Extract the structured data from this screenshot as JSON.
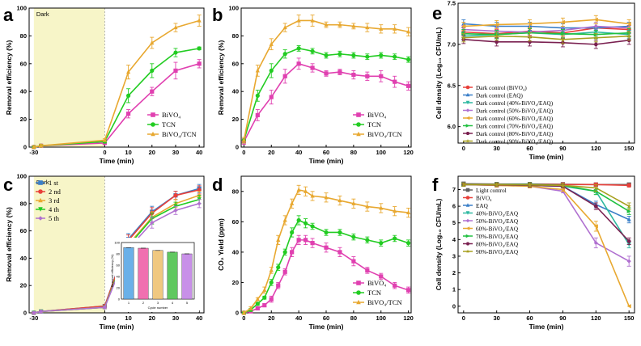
{
  "colors": {
    "pink": "#e040b0",
    "green": "#22cc22",
    "orange": "#e8a830",
    "red": "#e8403a",
    "blue": "#3a7fc8",
    "teal": "#2eb8a0",
    "purple": "#b070d0",
    "dgreen": "#20c040",
    "maroon": "#7a2050",
    "olive": "#a8a020",
    "gray": "#606060",
    "dark_fill": "#f7f5c8",
    "inset_bars": [
      "#6ab0e8",
      "#f070b0",
      "#f0c880",
      "#60c860",
      "#c890e8"
    ]
  },
  "chart_data": [
    {
      "id": "a",
      "label": "a",
      "type": "line",
      "title": "",
      "xlabel": "Time (min)",
      "ylabel": "Removal efficiency (%)",
      "xlim": [
        -32,
        42
      ],
      "ylim": [
        0,
        100
      ],
      "xticks": [
        -30,
        0,
        10,
        20,
        30,
        40
      ],
      "yticks": [
        0,
        20,
        40,
        60,
        80,
        100
      ],
      "dark_region": [
        -30,
        0
      ],
      "dark_label": "Dark",
      "legend_position": "bottom-right",
      "x": [
        -30,
        -27,
        0,
        10,
        20,
        30,
        40
      ],
      "series": [
        {
          "name": "BiVO₄",
          "color": "pink",
          "marker": "square",
          "values": [
            0,
            1,
            3,
            24,
            40,
            55,
            60
          ],
          "err": [
            1,
            1,
            1,
            3,
            3,
            6,
            3
          ]
        },
        {
          "name": "TCN",
          "color": "green",
          "marker": "circle",
          "values": [
            0,
            1,
            4,
            37,
            55,
            68,
            71
          ],
          "err": [
            1,
            1,
            1,
            5,
            5,
            3,
            1
          ]
        },
        {
          "name": "BiVO₄/TCN",
          "color": "orange",
          "marker": "triangle",
          "values": [
            0,
            1,
            5,
            54,
            75,
            86,
            91
          ],
          "err": [
            1,
            1,
            1,
            5,
            4,
            3,
            4
          ]
        }
      ]
    },
    {
      "id": "b",
      "label": "b",
      "type": "line",
      "title": "",
      "xlabel": "Time (min)",
      "ylabel": "Removal efficiency (%)",
      "xlim": [
        -2,
        122
      ],
      "ylim": [
        0,
        100
      ],
      "xticks": [
        0,
        20,
        40,
        60,
        80,
        100,
        120
      ],
      "yticks": [
        0,
        20,
        40,
        60,
        80,
        100
      ],
      "legend_position": "bottom-right",
      "x": [
        0,
        10,
        20,
        30,
        40,
        50,
        60,
        70,
        80,
        90,
        100,
        110,
        120
      ],
      "series": [
        {
          "name": "BiVO₄",
          "color": "pink",
          "marker": "square",
          "values": [
            4,
            23,
            36,
            51,
            60,
            57,
            53,
            54,
            52,
            51,
            51,
            47,
            44
          ],
          "err": [
            2,
            4,
            5,
            5,
            4,
            3,
            2,
            2,
            3,
            3,
            4,
            4,
            3
          ]
        },
        {
          "name": "TCN",
          "color": "green",
          "marker": "circle",
          "values": [
            5,
            37,
            55,
            67,
            71,
            69,
            66,
            67,
            66,
            65,
            66,
            65,
            63
          ],
          "err": [
            2,
            4,
            5,
            3,
            2,
            2,
            2,
            2,
            2,
            2,
            2,
            2,
            2
          ]
        },
        {
          "name": "BiVO₄/TCN",
          "color": "orange",
          "marker": "triangle",
          "values": [
            5,
            55,
            74,
            86,
            91,
            91,
            88,
            88,
            87,
            86,
            85,
            85,
            83
          ],
          "err": [
            2,
            4,
            4,
            3,
            4,
            4,
            2,
            2,
            2,
            3,
            3,
            3,
            3
          ]
        }
      ]
    },
    {
      "id": "c",
      "label": "c",
      "type": "line",
      "title": "",
      "xlabel": "Time (min)",
      "ylabel": "Removal efficiency (%)",
      "xlim": [
        -32,
        42
      ],
      "ylim": [
        0,
        100
      ],
      "xticks": [
        -30,
        0,
        10,
        20,
        30,
        40
      ],
      "yticks": [
        0,
        20,
        40,
        60,
        80,
        100
      ],
      "dark_region": [
        -30,
        0
      ],
      "dark_label": "Dark",
      "legend_position": "top-left",
      "x": [
        -30,
        -27,
        0,
        10,
        20,
        30,
        40
      ],
      "series": [
        {
          "name": "1 st",
          "color": "blue",
          "marker": "square",
          "values": [
            0,
            1,
            5,
            54,
            74,
            86,
            91
          ],
          "err": [
            1,
            1,
            1,
            4,
            4,
            3,
            3
          ]
        },
        {
          "name": "2 nd",
          "color": "red",
          "marker": "circle",
          "values": [
            0,
            1,
            5,
            53,
            73,
            86,
            90
          ],
          "err": [
            1,
            1,
            1,
            4,
            4,
            3,
            3
          ]
        },
        {
          "name": "3 rd",
          "color": "orange",
          "marker": "triangle",
          "values": [
            0,
            1,
            4,
            50,
            70,
            80,
            86
          ],
          "err": [
            1,
            1,
            1,
            4,
            4,
            3,
            3
          ]
        },
        {
          "name": "4 th",
          "color": "green",
          "marker": "triangle-down",
          "values": [
            0,
            1,
            4,
            49,
            69,
            78,
            83
          ],
          "err": [
            1,
            1,
            1,
            4,
            4,
            3,
            3
          ]
        },
        {
          "name": "5 th",
          "color": "purple",
          "marker": "diamond",
          "values": [
            0,
            1,
            4,
            47,
            66,
            75,
            80
          ],
          "err": [
            1,
            1,
            1,
            4,
            4,
            3,
            3
          ]
        }
      ],
      "inset": {
        "type": "bar",
        "xlabel": "Cycle number",
        "ylabel": "Removal efficiency (%)",
        "categories": [
          "1",
          "2",
          "3",
          "4",
          "5"
        ],
        "values": [
          91,
          90,
          86,
          83,
          80
        ],
        "ylim": [
          0,
          100
        ],
        "yticks": [
          0,
          20,
          40,
          60,
          80,
          100
        ]
      }
    },
    {
      "id": "d",
      "label": "d",
      "type": "line",
      "title": "",
      "xlabel": "Time (min)",
      "ylabel": "CO₂ Yield (ppm)",
      "xlim": [
        -2,
        122
      ],
      "ylim": [
        0,
        90
      ],
      "xticks": [
        0,
        20,
        40,
        60,
        80,
        100,
        120
      ],
      "yticks": [
        0,
        20,
        40,
        60,
        80
      ],
      "legend_position": "bottom-right",
      "x": [
        0,
        5,
        10,
        15,
        20,
        25,
        30,
        35,
        40,
        45,
        50,
        60,
        70,
        80,
        90,
        100,
        110,
        120
      ],
      "series": [
        {
          "name": "BiVO₄",
          "color": "pink",
          "marker": "square",
          "values": [
            0,
            1,
            3,
            5,
            9,
            18,
            27,
            40,
            48,
            48,
            46,
            43,
            40,
            34,
            28,
            24,
            18,
            15
          ],
          "err": [
            1,
            1,
            1,
            1,
            2,
            2,
            2,
            3,
            3,
            3,
            3,
            3,
            3,
            3,
            2,
            2,
            2,
            2
          ]
        },
        {
          "name": "TCN",
          "color": "green",
          "marker": "circle",
          "values": [
            0,
            2,
            6,
            10,
            20,
            30,
            40,
            53,
            61,
            59,
            57,
            53,
            53,
            50,
            48,
            46,
            49,
            46
          ],
          "err": [
            1,
            1,
            1,
            1,
            2,
            2,
            2,
            3,
            3,
            3,
            2,
            2,
            2,
            2,
            2,
            2,
            2,
            2
          ]
        },
        {
          "name": "BiVO₄/TCN",
          "color": "orange",
          "marker": "triangle",
          "values": [
            0,
            3,
            9,
            15,
            28,
            48,
            61,
            72,
            81,
            80,
            77,
            76,
            74,
            72,
            70,
            69,
            67,
            66
          ],
          "err": [
            1,
            1,
            1,
            2,
            2,
            3,
            3,
            3,
            3,
            3,
            3,
            3,
            3,
            3,
            3,
            3,
            3,
            3
          ]
        }
      ]
    },
    {
      "id": "e",
      "label": "e",
      "type": "line",
      "title": "",
      "xlabel": "Time (min)",
      "ylabel": "Cell density (Log₁₀ CFU/mL)",
      "xlim": [
        -5,
        155
      ],
      "ylim": [
        5.8,
        7.5
      ],
      "xticks": [
        0,
        30,
        60,
        90,
        120,
        150
      ],
      "yticks": [
        6.0,
        6.5,
        7.0,
        7.5
      ],
      "legend_position": "bottom-left",
      "x": [
        0,
        30,
        60,
        90,
        120,
        150
      ],
      "series": [
        {
          "name": "Dark control (BiVO₄)",
          "color": "red",
          "marker": "circle",
          "values": [
            7.15,
            7.13,
            7.16,
            7.14,
            7.2,
            7.18
          ],
          "err": [
            0.06,
            0.05,
            0.05,
            0.05,
            0.05,
            0.05
          ]
        },
        {
          "name": "Dark control (EAQ)",
          "color": "blue",
          "marker": "triangle",
          "values": [
            7.25,
            7.22,
            7.22,
            7.2,
            7.2,
            7.22
          ],
          "err": [
            0.05,
            0.05,
            0.05,
            0.05,
            0.05,
            0.05
          ]
        },
        {
          "name": "Dark control (40%-BiVO₄/EAQ)",
          "color": "teal",
          "marker": "triangle-down",
          "values": [
            7.1,
            7.12,
            7.14,
            7.12,
            7.15,
            7.12
          ],
          "err": [
            0.05,
            0.05,
            0.05,
            0.05,
            0.05,
            0.05
          ]
        },
        {
          "name": "Dark control (50%-BiVO₄/EAQ)",
          "color": "purple",
          "marker": "diamond",
          "values": [
            7.18,
            7.16,
            7.15,
            7.17,
            7.22,
            7.2
          ],
          "err": [
            0.05,
            0.05,
            0.05,
            0.05,
            0.05,
            0.05
          ]
        },
        {
          "name": "Dark control (60%-BiVO₄/EAQ)",
          "color": "orange",
          "marker": "triangle-left",
          "values": [
            7.22,
            7.24,
            7.25,
            7.27,
            7.3,
            7.25
          ],
          "err": [
            0.05,
            0.05,
            0.05,
            0.05,
            0.05,
            0.05
          ]
        },
        {
          "name": "Dark control (70%-BiVO₄/EAQ)",
          "color": "dgreen",
          "marker": "triangle-right",
          "values": [
            7.13,
            7.12,
            7.14,
            7.13,
            7.12,
            7.14
          ],
          "err": [
            0.05,
            0.05,
            0.05,
            0.05,
            0.05,
            0.05
          ]
        },
        {
          "name": "Dark control (80%-BiVO₄/EAQ)",
          "color": "maroon",
          "marker": "hexagon",
          "values": [
            7.06,
            7.03,
            7.03,
            7.02,
            7.0,
            7.05
          ],
          "err": [
            0.05,
            0.05,
            0.05,
            0.05,
            0.05,
            0.05
          ]
        },
        {
          "name": "Dark control (90%-BiVO₄/EAQ)",
          "color": "olive",
          "marker": "star",
          "values": [
            7.08,
            7.1,
            7.09,
            7.06,
            7.08,
            7.1
          ],
          "err": [
            0.05,
            0.05,
            0.05,
            0.05,
            0.05,
            0.05
          ]
        }
      ]
    },
    {
      "id": "f",
      "label": "f",
      "type": "line",
      "title": "",
      "xlabel": "Time (min)",
      "ylabel": "Cell density (Log₁₀ CFU/mL)",
      "xlim": [
        -5,
        155
      ],
      "ylim": [
        -0.4,
        7.8
      ],
      "xticks": [
        0,
        30,
        60,
        90,
        120,
        150
      ],
      "yticks": [
        0,
        1,
        2,
        3,
        4,
        5,
        6,
        7
      ],
      "legend_position": "left",
      "x": [
        0,
        30,
        60,
        90,
        120,
        150
      ],
      "series": [
        {
          "name": "Light control",
          "color": "gray",
          "marker": "square",
          "values": [
            7.35,
            7.33,
            7.33,
            7.32,
            7.3,
            7.3
          ],
          "err": [
            0.1,
            0.1,
            0.1,
            0.1,
            0.1,
            0.1
          ]
        },
        {
          "name": "BiVO₄",
          "color": "red",
          "marker": "circle",
          "values": [
            7.3,
            7.3,
            7.3,
            7.3,
            7.3,
            7.25
          ],
          "err": [
            0.1,
            0.1,
            0.1,
            0.1,
            0.1,
            0.1
          ]
        },
        {
          "name": "EAQ",
          "color": "blue",
          "marker": "triangle",
          "values": [
            7.3,
            7.3,
            7.25,
            7.2,
            6.1,
            5.2
          ],
          "err": [
            0.1,
            0.1,
            0.1,
            0.1,
            0.2,
            0.2
          ]
        },
        {
          "name": "40%-BiVO₄/EAQ",
          "color": "teal",
          "marker": "triangle-down",
          "values": [
            7.3,
            7.28,
            7.25,
            7.2,
            6.9,
            3.7
          ],
          "err": [
            0.1,
            0.1,
            0.1,
            0.1,
            0.2,
            0.2
          ]
        },
        {
          "name": "50%-BiVO₄/EAQ",
          "color": "purple",
          "marker": "diamond",
          "values": [
            7.3,
            7.25,
            7.2,
            6.9,
            3.8,
            2.7
          ],
          "err": [
            0.1,
            0.1,
            0.1,
            0.1,
            0.3,
            0.3
          ]
        },
        {
          "name": "60%-BiVO₄/EAQ",
          "color": "orange",
          "marker": "triangle-left",
          "values": [
            7.3,
            7.25,
            7.2,
            7.0,
            4.8,
            0.0
          ],
          "err": [
            0.1,
            0.1,
            0.1,
            0.1,
            0.3,
            0.0
          ]
        },
        {
          "name": "70%-BiVO₄/EAQ",
          "color": "dgreen",
          "marker": "triangle-right",
          "values": [
            7.3,
            7.3,
            7.3,
            7.25,
            6.9,
            5.7
          ],
          "err": [
            0.1,
            0.1,
            0.1,
            0.1,
            0.2,
            0.2
          ]
        },
        {
          "name": "80%-BiVO₄/EAQ",
          "color": "maroon",
          "marker": "hexagon",
          "values": [
            7.3,
            7.28,
            7.25,
            7.2,
            6.0,
            3.9
          ],
          "err": [
            0.1,
            0.1,
            0.1,
            0.1,
            0.2,
            0.2
          ]
        },
        {
          "name": "90%-BiVO₄/EAQ",
          "color": "olive",
          "marker": "star",
          "values": [
            7.3,
            7.3,
            7.28,
            7.25,
            7.1,
            6.0
          ],
          "err": [
            0.1,
            0.1,
            0.1,
            0.1,
            0.2,
            0.2
          ]
        }
      ]
    }
  ]
}
